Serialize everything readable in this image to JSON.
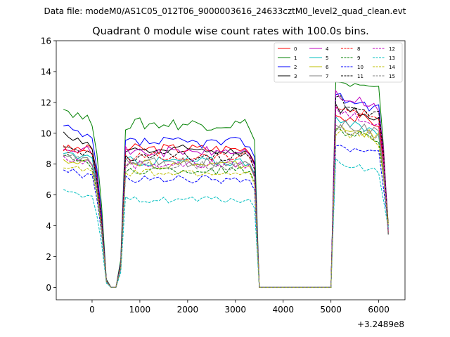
{
  "chart_data": {
    "type": "line",
    "suptitle": "Data file: modeM0/AS1C05_012T06_9000003616_24633cztM0_level2_quad_clean.evt",
    "title": "Quadrant 0 module wise count rates with 100.0s bins.",
    "xlabel": "",
    "ylabel": "",
    "x_offset_label": "+3.2489e8",
    "xlim": [
      -750,
      6550
    ],
    "ylim": [
      -0.8,
      16.0
    ],
    "xticks": [
      0,
      1000,
      2000,
      3000,
      4000,
      5000,
      6000
    ],
    "xtick_labels": [
      "0",
      "1000",
      "2000",
      "3000",
      "4000",
      "5000",
      "6000"
    ],
    "yticks": [
      0,
      2,
      4,
      6,
      8,
      10,
      12,
      14,
      16
    ],
    "ytick_labels": [
      "0",
      "2",
      "4",
      "6",
      "8",
      "10",
      "12",
      "14",
      "16"
    ],
    "grid": false,
    "legend_location": "upper right",
    "legend_columns": 4,
    "segments": [
      {
        "start": -600,
        "step": 100,
        "count": 11
      },
      {
        "start": 500,
        "step": 100,
        "count": 35
      },
      {
        "start": 5000,
        "step": 100,
        "count": 13
      }
    ],
    "series": [
      {
        "name": "0",
        "color": "#ff0000",
        "dash": "solid",
        "level": 9.0,
        "drop": 9.0,
        "peak": 11.3
      },
      {
        "name": "1",
        "color": "#008000",
        "dash": "solid",
        "level": 10.6,
        "drop": 11.6,
        "peak": 13.4
      },
      {
        "name": "2",
        "color": "#0000ff",
        "dash": "solid",
        "level": 9.4,
        "drop": 10.4,
        "peak": 12.5
      },
      {
        "name": "3",
        "color": "#000000",
        "dash": "solid",
        "level": 8.9,
        "drop": 9.9,
        "peak": 11.8
      },
      {
        "name": "4",
        "color": "#bf00bf",
        "dash": "solid",
        "level": 8.8,
        "drop": 9.2,
        "peak": 12.6
      },
      {
        "name": "5",
        "color": "#00bfbf",
        "dash": "solid",
        "level": 8.2,
        "drop": 8.8,
        "peak": 10.8
      },
      {
        "name": "6",
        "color": "#bfbf00",
        "dash": "solid",
        "level": 8.0,
        "drop": 8.3,
        "peak": 10.5
      },
      {
        "name": "7",
        "color": "#808080",
        "dash": "solid",
        "level": 8.1,
        "drop": 8.5,
        "peak": 10.8
      },
      {
        "name": "8",
        "color": "#ff0000",
        "dash": "dashed",
        "level": 8.5,
        "drop": 9.0,
        "peak": 11.9
      },
      {
        "name": "9",
        "color": "#008000",
        "dash": "dashed",
        "level": 7.6,
        "drop": 8.7,
        "peak": 10.4
      },
      {
        "name": "10",
        "color": "#0000ff",
        "dash": "dashed",
        "level": 7.0,
        "drop": 7.7,
        "peak": 9.2
      },
      {
        "name": "11",
        "color": "#000000",
        "dash": "dashed",
        "level": 8.5,
        "drop": 9.1,
        "peak": 12.3
      },
      {
        "name": "12",
        "color": "#bf00bf",
        "dash": "dashed",
        "level": 8.0,
        "drop": 8.4,
        "peak": 11.6
      },
      {
        "name": "13",
        "color": "#00bfbf",
        "dash": "dashed",
        "level": 5.7,
        "drop": 6.2,
        "peak": 8.2
      },
      {
        "name": "14",
        "color": "#bfbf00",
        "dash": "dashed",
        "level": 7.4,
        "drop": 7.9,
        "peak": 10.2
      },
      {
        "name": "15",
        "color": "#808080",
        "dash": "dashed",
        "level": 7.9,
        "drop": 8.6,
        "peak": 10.4
      }
    ]
  }
}
